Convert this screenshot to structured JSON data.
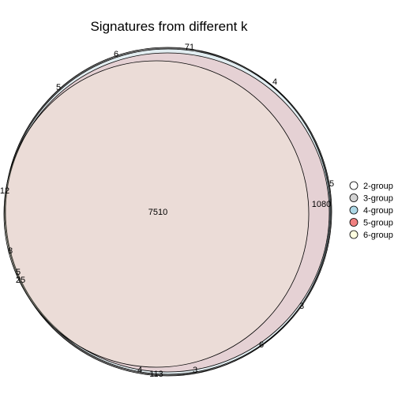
{
  "chart_data": {
    "type": "venn",
    "title": "Signatures from different k",
    "sets": [
      {
        "name": "2-group",
        "color": "#ffffff"
      },
      {
        "name": "3-group",
        "color": "#d3d3d3"
      },
      {
        "name": "4-group",
        "color": "#add8e6"
      },
      {
        "name": "5-group",
        "color": "#f08080"
      },
      {
        "name": "6-group",
        "color": "#ffffe0"
      }
    ],
    "region_counts": [
      "7510",
      "1080",
      "71",
      "6",
      "5",
      "4",
      "5",
      "12",
      "8",
      "5",
      "25",
      "3",
      "6",
      "4",
      "113",
      "3"
    ],
    "legend_position": "right"
  }
}
